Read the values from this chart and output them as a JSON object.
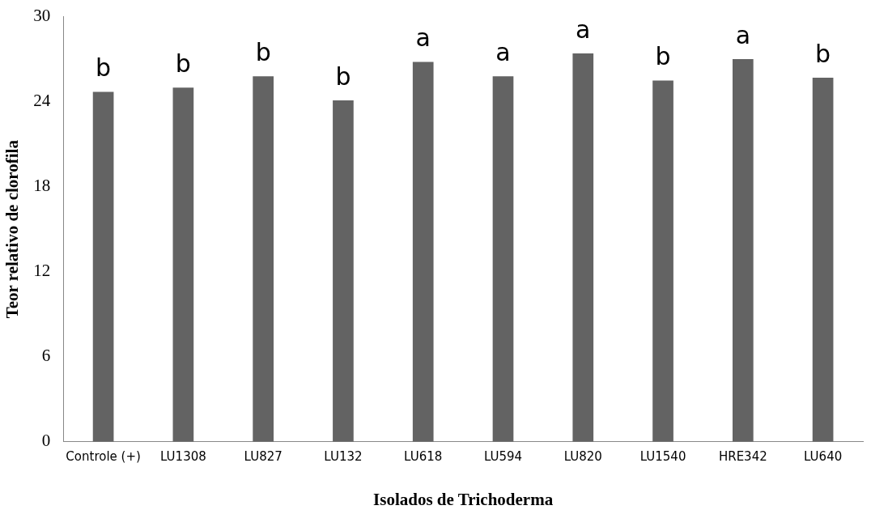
{
  "chart_data": {
    "type": "bar",
    "xlabel": "Isolados de Trichoderma",
    "ylabel": "Teor relativo de clorofila",
    "categories": [
      "Controle (+)",
      "LU1308",
      "LU827",
      "LU132",
      "LU618",
      "LU594",
      "LU820",
      "LU1540",
      "HRE342",
      "LU640"
    ],
    "values": [
      24.7,
      25.0,
      25.8,
      24.1,
      26.8,
      25.8,
      27.4,
      25.5,
      27.0,
      25.7
    ],
    "color": "#636363",
    "ylim": [
      0,
      30
    ],
    "yticks": [
      0,
      6,
      12,
      18,
      24,
      30
    ],
    "grid": false,
    "annotations": [
      {
        "text": "b",
        "x": "Controle (+)",
        "y": 24.7
      },
      {
        "text": "b",
        "x": "LU1308",
        "y": 25.0
      },
      {
        "text": "b",
        "x": "LU827",
        "y": 25.8
      },
      {
        "text": "b",
        "x": "LU132",
        "y": 24.1
      },
      {
        "text": "a",
        "x": "LU618",
        "y": 26.8
      },
      {
        "text": "a",
        "x": "LU594",
        "y": 25.8
      },
      {
        "text": "a",
        "x": "LU820",
        "y": 27.4
      },
      {
        "text": "b",
        "x": "LU1540",
        "y": 25.5
      },
      {
        "text": "a",
        "x": "HRE342",
        "y": 27.0
      },
      {
        "text": "b",
        "x": "LU640",
        "y": 25.7
      }
    ]
  }
}
